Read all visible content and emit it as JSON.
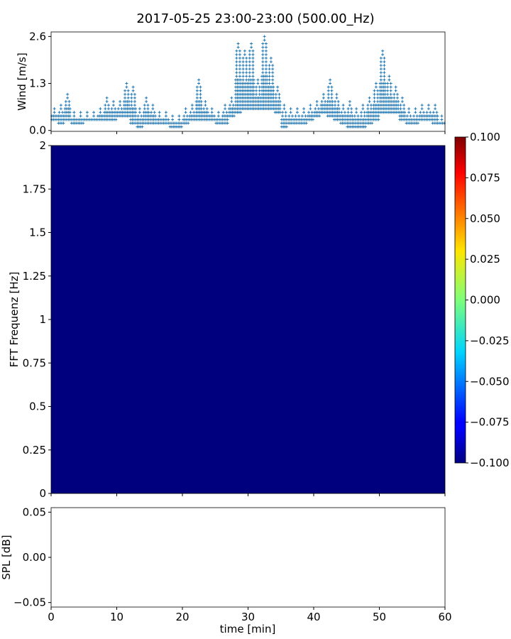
{
  "chart_data": [
    {
      "type": "scatter",
      "title": "2017-05-25 23:00-23:00 (500.00_Hz)",
      "ylabel": "Wind [m/s]",
      "xlim": [
        0,
        60
      ],
      "ylim": [
        -0.025,
        2.725
      ],
      "yticks": [
        "0.0",
        "1.3",
        "2.6"
      ],
      "marker": "+",
      "color": "#1f77b4",
      "value_step": 0.1,
      "minute_ranges": {
        "minute": [
          0,
          1,
          2,
          3,
          4,
          5,
          6,
          7,
          8,
          9,
          10,
          11,
          12,
          13,
          14,
          15,
          16,
          17,
          18,
          19,
          20,
          21,
          22,
          23,
          24,
          25,
          26,
          27,
          28,
          29,
          30,
          31,
          32,
          33,
          34,
          35,
          36,
          37,
          38,
          39,
          40,
          41,
          42,
          43,
          44,
          45,
          46,
          47,
          48,
          49,
          50,
          51,
          52,
          53,
          54,
          55,
          56,
          57,
          58,
          59
        ],
        "min": [
          0.3,
          0.2,
          0.3,
          0.2,
          0.2,
          0.3,
          0.3,
          0.3,
          0.3,
          0.3,
          0.4,
          0.4,
          0.2,
          0.1,
          0.2,
          0.2,
          0.2,
          0.2,
          0.1,
          0.1,
          0.2,
          0.3,
          0.3,
          0.3,
          0.3,
          0.2,
          0.2,
          0.4,
          0.5,
          0.6,
          0.6,
          0.6,
          0.6,
          0.6,
          0.5,
          0.1,
          0.2,
          0.2,
          0.2,
          0.3,
          0.4,
          0.5,
          0.4,
          0.3,
          0.2,
          0.1,
          0.1,
          0.1,
          0.2,
          0.3,
          0.5,
          0.5,
          0.5,
          0.3,
          0.2,
          0.2,
          0.3,
          0.3,
          0.2,
          0.2
        ],
        "max": [
          0.6,
          0.7,
          1.0,
          0.5,
          0.5,
          0.5,
          0.5,
          0.6,
          0.9,
          0.8,
          0.8,
          1.3,
          1.2,
          0.6,
          0.9,
          0.7,
          0.5,
          0.5,
          0.4,
          0.4,
          0.6,
          0.7,
          1.4,
          0.8,
          0.6,
          0.5,
          0.7,
          0.9,
          2.4,
          2.2,
          2.4,
          1.4,
          2.6,
          2.0,
          1.2,
          0.7,
          0.6,
          0.6,
          0.6,
          0.7,
          0.8,
          1.0,
          1.4,
          1.0,
          0.7,
          0.8,
          0.6,
          0.7,
          0.9,
          1.3,
          2.2,
          1.5,
          1.2,
          0.9,
          0.6,
          0.6,
          0.7,
          0.7,
          0.7,
          0.4
        ]
      }
    },
    {
      "type": "heatmap",
      "ylabel": "FFT Frequenz [Hz]",
      "xlim": [
        0,
        60
      ],
      "ylim": [
        0,
        2
      ],
      "yticks": [
        "0",
        "0.25",
        "0.5",
        "0.75",
        "1",
        "1.25",
        "1.5",
        "1.75",
        "2"
      ],
      "fill_value": -0.1,
      "fill_color": "#00007f",
      "colormap": "jet",
      "colorbar": {
        "range": [
          -0.1,
          0.1
        ],
        "ticks": [
          "0.100",
          "0.075",
          "0.050",
          "0.025",
          "0.000",
          "−0.025",
          "−0.050",
          "−0.075",
          "−0.100"
        ]
      }
    },
    {
      "type": "line",
      "ylabel": "SPL [dB]",
      "xlabel": "time [min]",
      "xlim": [
        0,
        60
      ],
      "ylim": [
        -0.055,
        0.055
      ],
      "yticks": [
        "0.05",
        "0.00",
        "−0.05"
      ],
      "xticks": [
        "0",
        "10",
        "20",
        "30",
        "40",
        "50",
        "60"
      ],
      "values": []
    }
  ]
}
